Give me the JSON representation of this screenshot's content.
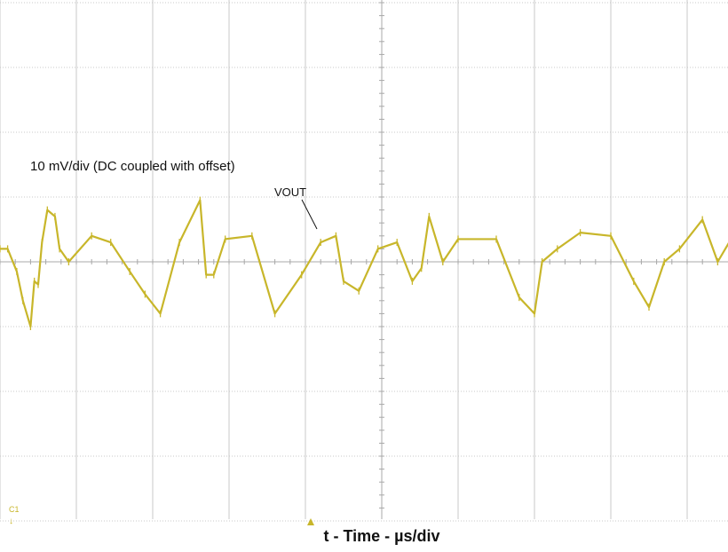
{
  "chart_data": {
    "type": "line",
    "title": "",
    "xlabel": "t - Time - µs/div",
    "ylabel": "",
    "grid": true,
    "grid_divisions": {
      "x": 10,
      "y": 8
    },
    "xlim": [
      0,
      10
    ],
    "ylim": [
      -4,
      4
    ],
    "annotations": {
      "scale": "10 mV/div (DC coupled with offset)",
      "trace_label": "VOUT",
      "channel_marker": "C1"
    },
    "series": [
      {
        "name": "VOUT",
        "color": "#c8b62a",
        "x": [
          0.0,
          0.1,
          0.22,
          0.3,
          0.4,
          0.45,
          0.5,
          0.55,
          0.62,
          0.72,
          0.78,
          0.9,
          1.2,
          1.45,
          1.7,
          1.9,
          2.1,
          2.35,
          2.62,
          2.7,
          2.8,
          2.95,
          3.3,
          3.6,
          3.95,
          4.2,
          4.4,
          4.5,
          4.7,
          4.95,
          5.2,
          5.4,
          5.52,
          5.62,
          5.8,
          6.0,
          6.5,
          6.8,
          7.0,
          7.1,
          7.3,
          7.6,
          8.0,
          8.3,
          8.5,
          8.7,
          8.9,
          9.2,
          9.4,
          9.55,
          10.0
        ],
        "values": [
          0.2,
          0.2,
          -0.15,
          -0.6,
          -1.0,
          -0.3,
          -0.35,
          0.3,
          0.8,
          0.7,
          0.2,
          0.0,
          0.4,
          0.3,
          -0.15,
          -0.5,
          -0.8,
          0.3,
          0.95,
          -0.2,
          -0.2,
          0.35,
          0.4,
          -0.8,
          -0.2,
          0.3,
          0.4,
          -0.3,
          -0.45,
          0.2,
          0.3,
          -0.3,
          -0.1,
          0.7,
          0.0,
          0.35,
          0.35,
          -0.55,
          -0.8,
          0.0,
          0.2,
          0.45,
          0.4,
          -0.3,
          -0.7,
          0.0,
          0.2,
          0.65,
          0.0,
          0.3,
          0.0
        ]
      }
    ]
  }
}
